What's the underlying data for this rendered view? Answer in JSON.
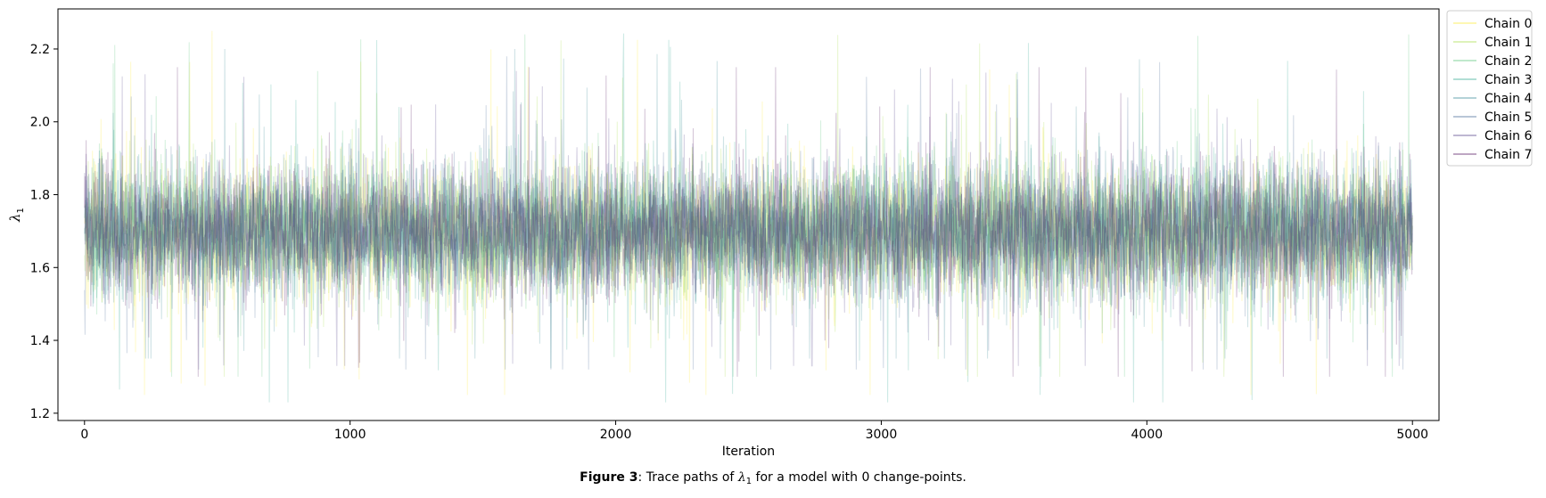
{
  "chart_data": {
    "type": "line",
    "title": "",
    "xlabel": "Iteration",
    "ylabel": "λ1",
    "xlim": [
      -100,
      5100
    ],
    "ylim": [
      1.18,
      2.31
    ],
    "xticks": [
      0,
      1000,
      2000,
      3000,
      4000,
      5000
    ],
    "xtick_labels": [
      "0",
      "1000",
      "2000",
      "3000",
      "4000",
      "5000"
    ],
    "yticks": [
      1.2,
      1.4,
      1.6,
      1.8,
      2.0,
      2.2
    ],
    "ytick_labels": [
      "1.2",
      "1.4",
      "1.6",
      "1.8",
      "2.0",
      "2.2"
    ],
    "grid": false,
    "legend_position": "outside-top-right",
    "n_iterations": 5000,
    "center_value": 1.7,
    "series": [
      {
        "name": "Chain 0",
        "color": "#fde725",
        "approx_mean": 1.7,
        "approx_range": [
          1.25,
          2.26
        ]
      },
      {
        "name": "Chain 1",
        "color": "#a0da39",
        "approx_mean": 1.7,
        "approx_range": [
          1.3,
          2.24
        ]
      },
      {
        "name": "Chain 2",
        "color": "#4ac16d",
        "approx_mean": 1.7,
        "approx_range": [
          1.3,
          2.24
        ]
      },
      {
        "name": "Chain 3",
        "color": "#1fa187",
        "approx_mean": 1.7,
        "approx_range": [
          1.23,
          2.26
        ]
      },
      {
        "name": "Chain 4",
        "color": "#277f8e",
        "approx_mean": 1.7,
        "approx_range": [
          1.35,
          2.2
        ]
      },
      {
        "name": "Chain 5",
        "color": "#365c8d",
        "approx_mean": 1.7,
        "approx_range": [
          1.32,
          2.18
        ]
      },
      {
        "name": "Chain 6",
        "color": "#46327e",
        "approx_mean": 1.7,
        "approx_range": [
          1.33,
          2.16
        ]
      },
      {
        "name": "Chain 7",
        "color": "#440154",
        "approx_mean": 1.7,
        "approx_range": [
          1.3,
          2.15
        ]
      }
    ]
  },
  "caption": {
    "label": "Figure 3",
    "text_before": ": Trace paths of ",
    "symbol": "λ",
    "subscript": "1",
    "text_after": " for a model with 0 change-points."
  }
}
